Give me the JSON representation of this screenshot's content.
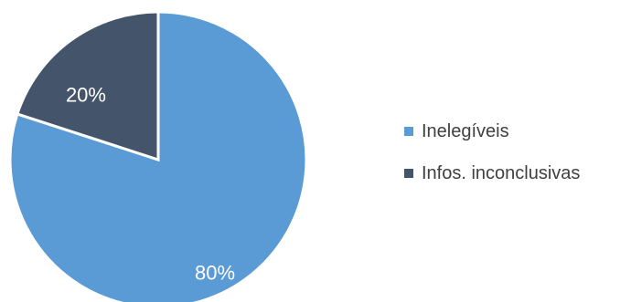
{
  "chart_data": {
    "type": "pie",
    "categories": [
      "Inelegíveis",
      "Infos. inconclusivas"
    ],
    "values": [
      80,
      20
    ],
    "labels": [
      "80%",
      "20%"
    ],
    "colors": [
      "#5b9bd5",
      "#44546a"
    ],
    "start_angle": "12 o'clock",
    "direction": "clockwise",
    "legend_position": "right"
  }
}
